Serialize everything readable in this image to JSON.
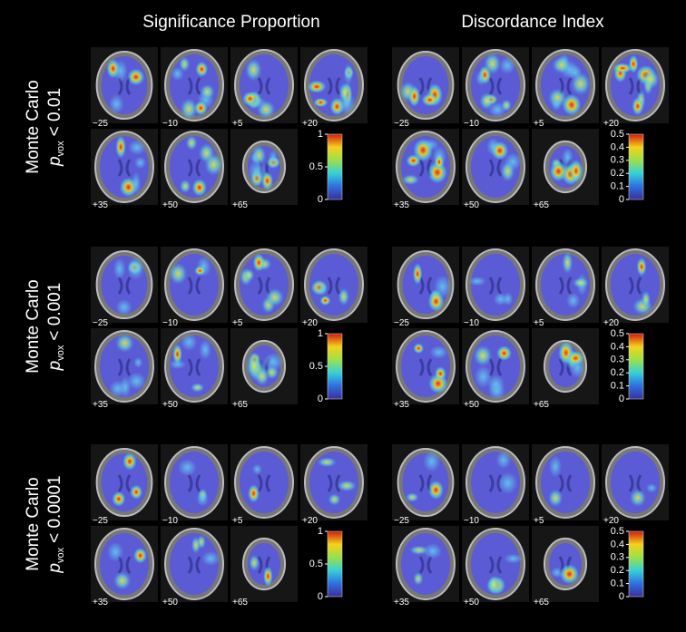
{
  "columns": [
    {
      "title": "Significance Proportion",
      "colorbar_ticks": [
        0,
        0.5,
        1
      ]
    },
    {
      "title": "Discordance Index",
      "colorbar_ticks": [
        0,
        0.1,
        0.2,
        0.3,
        0.4,
        0.5
      ]
    }
  ],
  "rows": [
    {
      "label": "Monte Carlo",
      "p": "p",
      "sub": "vox",
      "threshold": "< 0.01"
    },
    {
      "label": "Monte Carlo",
      "p": "p",
      "sub": "vox",
      "threshold": "< 0.001"
    },
    {
      "label": "Monte Carlo",
      "p": "p",
      "sub": "vox",
      "threshold": "< 0.0001"
    }
  ],
  "slices": [
    "−25",
    "−10",
    "+5",
    "+20",
    "+35",
    "+50",
    "+65"
  ]
}
